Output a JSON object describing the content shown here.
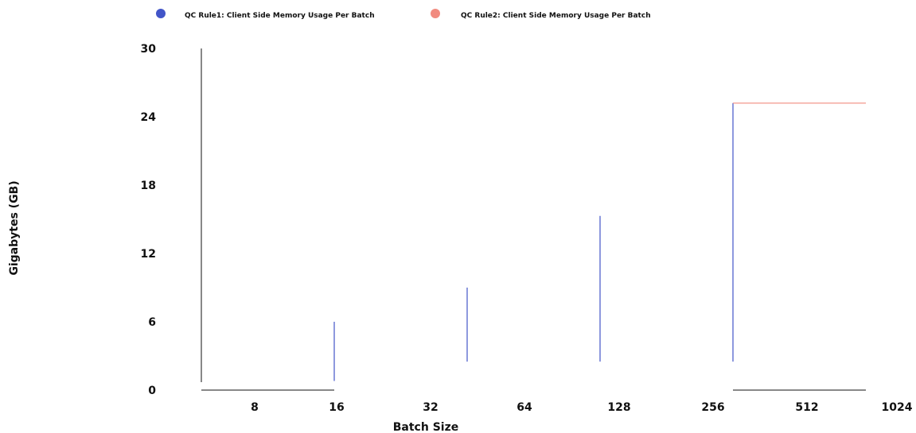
{
  "chart_data": {
    "type": "line",
    "title": "",
    "xlabel": "Batch Size",
    "ylabel": "Gigabytes (GB)",
    "x_ticks": [
      "8",
      "16",
      "32",
      "64",
      "128",
      "256",
      "512",
      "1024"
    ],
    "y_ticks": [
      0,
      6,
      12,
      18,
      24,
      30
    ],
    "ylim": [
      0,
      30
    ],
    "grid": false,
    "legend_position": "top",
    "colors": {
      "axis": "#111111",
      "series1": "#4255c8",
      "series2": "#f18b7f"
    },
    "series": [
      {
        "name": "QC Rule1: Client Side Memory Usage Per Batch",
        "color": "#4255c8",
        "segments": [
          {
            "x": 16,
            "y": [
              0.8,
              6.0
            ]
          },
          {
            "x": 32,
            "y": [
              2.5,
              9.0
            ]
          },
          {
            "x": 64,
            "y": [
              2.5,
              15.3
            ]
          },
          {
            "x": 256,
            "y": [
              2.5,
              25.2
            ]
          }
        ]
      },
      {
        "name": "QC Rule2: Client Side Memory Usage Per Batch",
        "color": "#f18b7f",
        "segments": [
          {
            "x": [
              256,
              1024
            ],
            "y": 25.2
          }
        ]
      }
    ]
  }
}
